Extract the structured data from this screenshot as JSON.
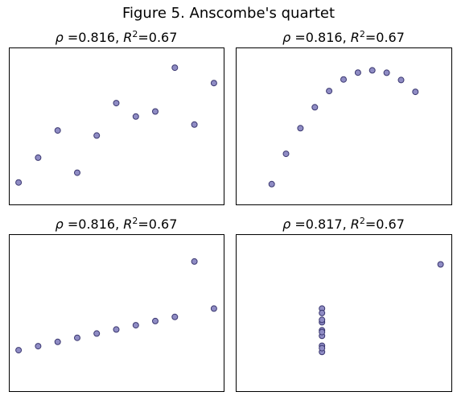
{
  "figure": {
    "title": "Figure 5. Anscombe's quartet"
  },
  "style": {
    "marker_fill": "#8f8cc4",
    "marker_edge": "#3a3770"
  },
  "chart_data": [
    {
      "type": "scatter",
      "title": "ρ =0.816, R²=0.67",
      "title_parts": {
        "rho_symbol": "ρ",
        "rho_text": " =0.816, ",
        "r_symbol": "R",
        "r_exp": "2",
        "r_text": "=0.67"
      },
      "xlim": [
        3.5,
        14.5
      ],
      "ylim": [
        3,
        12
      ],
      "grid": false,
      "ticks": false,
      "x": [
        10,
        8,
        13,
        9,
        11,
        14,
        6,
        4,
        12,
        7,
        5
      ],
      "y": [
        8.04,
        6.95,
        7.58,
        8.81,
        8.33,
        9.96,
        7.24,
        4.26,
        10.84,
        4.82,
        5.68
      ]
    },
    {
      "type": "scatter",
      "title": "ρ =0.816, R²=0.67",
      "title_parts": {
        "rho_symbol": "ρ",
        "rho_text": " =0.816, ",
        "r_symbol": "R",
        "r_exp": "2",
        "r_text": "=0.67"
      },
      "xlim": [
        1.5,
        16.5
      ],
      "ylim": [
        2,
        10.5
      ],
      "grid": false,
      "ticks": false,
      "x": [
        10,
        8,
        13,
        9,
        11,
        14,
        6,
        4,
        12,
        7,
        5
      ],
      "y": [
        9.14,
        8.14,
        8.74,
        8.77,
        9.26,
        8.1,
        6.13,
        3.1,
        9.13,
        7.26,
        4.74
      ]
    },
    {
      "type": "scatter",
      "title": "ρ =0.816, R²=0.67",
      "title_parts": {
        "rho_symbol": "ρ",
        "rho_text": " =0.816, ",
        "r_symbol": "R",
        "r_exp": "2",
        "r_text": "=0.67"
      },
      "xlim": [
        3.5,
        14.5
      ],
      "ylim": [
        2,
        15
      ],
      "grid": false,
      "ticks": false,
      "x": [
        10,
        8,
        13,
        9,
        11,
        14,
        6,
        4,
        12,
        7,
        5
      ],
      "y": [
        7.46,
        6.77,
        12.74,
        7.11,
        7.81,
        8.84,
        6.08,
        5.39,
        8.15,
        6.42,
        5.73
      ]
    },
    {
      "type": "scatter",
      "title": "ρ =0.817, R²=0.67",
      "title_parts": {
        "rho_symbol": "ρ",
        "rho_text": " =0.817, ",
        "r_symbol": "R",
        "r_exp": "2",
        "r_text": "=0.67"
      },
      "xlim": [
        0,
        20
      ],
      "ylim": [
        2,
        15
      ],
      "grid": false,
      "ticks": false,
      "x": [
        8,
        8,
        8,
        8,
        8,
        8,
        8,
        19,
        8,
        8,
        8
      ],
      "y": [
        6.58,
        5.76,
        7.71,
        8.84,
        8.47,
        7.04,
        5.25,
        12.5,
        5.56,
        7.91,
        6.89
      ]
    }
  ]
}
